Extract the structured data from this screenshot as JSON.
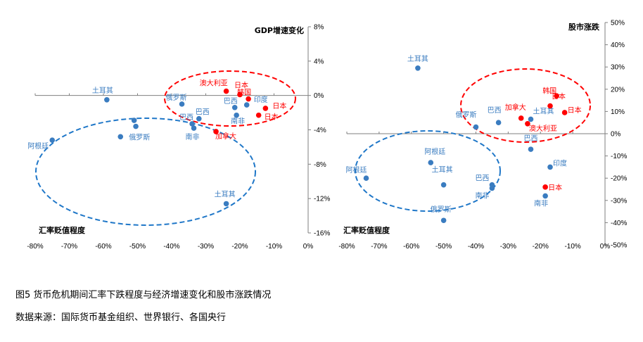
{
  "colors": {
    "blue": "#3a7cc0",
    "red": "#ff0000",
    "blue_ellipse": "#1f77c8",
    "red_ellipse": "#ff0000"
  },
  "caption": {
    "title": "图5  货币危机期间汇率下跌程度与经济增速变化和股市涨跌情况",
    "source": "数据来源：国际货币基金组织、世界银行、各国央行"
  },
  "chart_data": [
    {
      "type": "scatter",
      "title": "",
      "xlabel": "汇率贬值程度",
      "ylabel": "GDP增速变化",
      "xlim": [
        -80,
        0
      ],
      "ylim": [
        -16,
        8
      ],
      "xticks": [
        "-80%",
        "-70%",
        "-60%",
        "-50%",
        "-40%",
        "-30%",
        "-20%",
        "-10%",
        "0%"
      ],
      "yticks": [
        "8%",
        "4%",
        "0%",
        "-4%",
        "-8%",
        "-12%",
        "-16%"
      ],
      "series": [
        {
          "color": "blue",
          "points": [
            {
              "x": -59,
              "y": -0.5,
              "label": "土耳其"
            },
            {
              "x": -51,
              "y": -2.9,
              "label": ""
            },
            {
              "x": -50.5,
              "y": -3.6,
              "label": ""
            },
            {
              "x": -55,
              "y": -4.8,
              "label": "俄罗斯"
            },
            {
              "x": -75,
              "y": -5.2,
              "label": "阿根廷"
            },
            {
              "x": -37,
              "y": -1.0,
              "label": "俄罗斯"
            },
            {
              "x": -32,
              "y": -2.7,
              "label": "巴西"
            },
            {
              "x": -34,
              "y": -3.3,
              "label": "巴西"
            },
            {
              "x": -33.5,
              "y": -3.8,
              "label": "南非"
            },
            {
              "x": -24,
              "y": -12.6,
              "label": "土耳其"
            },
            {
              "x": -21.5,
              "y": -1.4,
              "label": "巴西"
            },
            {
              "x": -18,
              "y": -1.1,
              "label": "印度"
            },
            {
              "x": -21,
              "y": -2.3,
              "label": "南非"
            }
          ]
        },
        {
          "color": "red",
          "points": [
            {
              "x": -24,
              "y": 0.5,
              "label": "澳大利亚"
            },
            {
              "x": -20,
              "y": 0.1,
              "label": "日本"
            },
            {
              "x": -17.5,
              "y": -0.4,
              "label": "韩国"
            },
            {
              "x": -12.5,
              "y": -1.5,
              "label": "日本"
            },
            {
              "x": -14.5,
              "y": -2.3,
              "label": "日本"
            },
            {
              "x": -27,
              "y": -4.2,
              "label": "加拿大"
            }
          ]
        }
      ],
      "annotations": [
        {
          "shape": "ellipse",
          "color": "blue"
        },
        {
          "shape": "ellipse",
          "color": "red"
        }
      ]
    },
    {
      "type": "scatter",
      "title": "",
      "xlabel": "汇率贬值程度",
      "ylabel": "股市涨跌",
      "xlim": [
        -80,
        0
      ],
      "ylim": [
        -50,
        50
      ],
      "xticks": [
        "-80%",
        "-70%",
        "-60%",
        "-50%",
        "-40%",
        "-30%",
        "-20%",
        "-10%",
        "0%"
      ],
      "yticks": [
        "50%",
        "40%",
        "30%",
        "20%",
        "10%",
        "0%",
        "-10%",
        "-20%",
        "-30%",
        "-40%",
        "-50%"
      ],
      "series": [
        {
          "color": "blue",
          "points": [
            {
              "x": -58,
              "y": 29.5,
              "label": "土耳其"
            },
            {
              "x": -40,
              "y": 3,
              "label": "俄罗斯"
            },
            {
              "x": -33,
              "y": 5,
              "label": "巴西"
            },
            {
              "x": -23,
              "y": 6.5,
              "label": "土耳其"
            },
            {
              "x": -23,
              "y": -7,
              "label": "巴西"
            },
            {
              "x": -54,
              "y": -13,
              "label": "阿根廷"
            },
            {
              "x": -74,
              "y": -20,
              "label": "阿根廷"
            },
            {
              "x": -50,
              "y": -23,
              "label": "土耳其"
            },
            {
              "x": -35,
              "y": -23,
              "label": "巴西"
            },
            {
              "x": -35,
              "y": -24.5,
              "label": "南非"
            },
            {
              "x": -50,
              "y": -39,
              "label": "俄罗斯"
            },
            {
              "x": -17,
              "y": -15,
              "label": "印度"
            },
            {
              "x": -18.5,
              "y": -28,
              "label": "南非"
            }
          ]
        },
        {
          "color": "red",
          "points": [
            {
              "x": -26,
              "y": 7,
              "label": "加拿大"
            },
            {
              "x": -24,
              "y": 4.5,
              "label": "澳大利亚"
            },
            {
              "x": -15,
              "y": 17,
              "label": "韩国"
            },
            {
              "x": -17,
              "y": 12.5,
              "label": "日本"
            },
            {
              "x": -12.5,
              "y": 9.5,
              "label": "日本"
            },
            {
              "x": -18.5,
              "y": -24,
              "label": "日本"
            }
          ]
        }
      ],
      "annotations": [
        {
          "shape": "ellipse",
          "color": "blue"
        },
        {
          "shape": "ellipse",
          "color": "red"
        }
      ]
    }
  ]
}
